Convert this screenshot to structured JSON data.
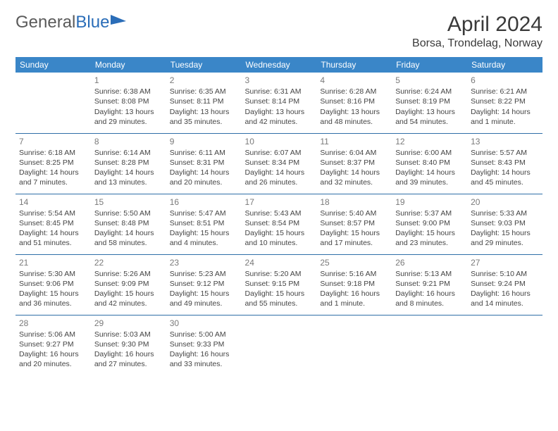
{
  "logo": {
    "text1": "General",
    "text2": "Blue"
  },
  "title": "April 2024",
  "location": "Borsa, Trondelag, Norway",
  "colors": {
    "header_bg": "#3a86c8",
    "header_fg": "#ffffff",
    "rule": "#2f6fa8",
    "daynum": "#7a7a7a",
    "body_text": "#444444",
    "title_text": "#3a3a3a",
    "logo_gray": "#5a5a5a",
    "logo_blue": "#2a6db8"
  },
  "weekdays": [
    "Sunday",
    "Monday",
    "Tuesday",
    "Wednesday",
    "Thursday",
    "Friday",
    "Saturday"
  ],
  "weeks": [
    [
      null,
      {
        "n": "1",
        "sr": "6:38 AM",
        "ss": "8:08 PM",
        "dl": "13 hours and 29 minutes."
      },
      {
        "n": "2",
        "sr": "6:35 AM",
        "ss": "8:11 PM",
        "dl": "13 hours and 35 minutes."
      },
      {
        "n": "3",
        "sr": "6:31 AM",
        "ss": "8:14 PM",
        "dl": "13 hours and 42 minutes."
      },
      {
        "n": "4",
        "sr": "6:28 AM",
        "ss": "8:16 PM",
        "dl": "13 hours and 48 minutes."
      },
      {
        "n": "5",
        "sr": "6:24 AM",
        "ss": "8:19 PM",
        "dl": "13 hours and 54 minutes."
      },
      {
        "n": "6",
        "sr": "6:21 AM",
        "ss": "8:22 PM",
        "dl": "14 hours and 1 minute."
      }
    ],
    [
      {
        "n": "7",
        "sr": "6:18 AM",
        "ss": "8:25 PM",
        "dl": "14 hours and 7 minutes."
      },
      {
        "n": "8",
        "sr": "6:14 AM",
        "ss": "8:28 PM",
        "dl": "14 hours and 13 minutes."
      },
      {
        "n": "9",
        "sr": "6:11 AM",
        "ss": "8:31 PM",
        "dl": "14 hours and 20 minutes."
      },
      {
        "n": "10",
        "sr": "6:07 AM",
        "ss": "8:34 PM",
        "dl": "14 hours and 26 minutes."
      },
      {
        "n": "11",
        "sr": "6:04 AM",
        "ss": "8:37 PM",
        "dl": "14 hours and 32 minutes."
      },
      {
        "n": "12",
        "sr": "6:00 AM",
        "ss": "8:40 PM",
        "dl": "14 hours and 39 minutes."
      },
      {
        "n": "13",
        "sr": "5:57 AM",
        "ss": "8:43 PM",
        "dl": "14 hours and 45 minutes."
      }
    ],
    [
      {
        "n": "14",
        "sr": "5:54 AM",
        "ss": "8:45 PM",
        "dl": "14 hours and 51 minutes."
      },
      {
        "n": "15",
        "sr": "5:50 AM",
        "ss": "8:48 PM",
        "dl": "14 hours and 58 minutes."
      },
      {
        "n": "16",
        "sr": "5:47 AM",
        "ss": "8:51 PM",
        "dl": "15 hours and 4 minutes."
      },
      {
        "n": "17",
        "sr": "5:43 AM",
        "ss": "8:54 PM",
        "dl": "15 hours and 10 minutes."
      },
      {
        "n": "18",
        "sr": "5:40 AM",
        "ss": "8:57 PM",
        "dl": "15 hours and 17 minutes."
      },
      {
        "n": "19",
        "sr": "5:37 AM",
        "ss": "9:00 PM",
        "dl": "15 hours and 23 minutes."
      },
      {
        "n": "20",
        "sr": "5:33 AM",
        "ss": "9:03 PM",
        "dl": "15 hours and 29 minutes."
      }
    ],
    [
      {
        "n": "21",
        "sr": "5:30 AM",
        "ss": "9:06 PM",
        "dl": "15 hours and 36 minutes."
      },
      {
        "n": "22",
        "sr": "5:26 AM",
        "ss": "9:09 PM",
        "dl": "15 hours and 42 minutes."
      },
      {
        "n": "23",
        "sr": "5:23 AM",
        "ss": "9:12 PM",
        "dl": "15 hours and 49 minutes."
      },
      {
        "n": "24",
        "sr": "5:20 AM",
        "ss": "9:15 PM",
        "dl": "15 hours and 55 minutes."
      },
      {
        "n": "25",
        "sr": "5:16 AM",
        "ss": "9:18 PM",
        "dl": "16 hours and 1 minute."
      },
      {
        "n": "26",
        "sr": "5:13 AM",
        "ss": "9:21 PM",
        "dl": "16 hours and 8 minutes."
      },
      {
        "n": "27",
        "sr": "5:10 AM",
        "ss": "9:24 PM",
        "dl": "16 hours and 14 minutes."
      }
    ],
    [
      {
        "n": "28",
        "sr": "5:06 AM",
        "ss": "9:27 PM",
        "dl": "16 hours and 20 minutes."
      },
      {
        "n": "29",
        "sr": "5:03 AM",
        "ss": "9:30 PM",
        "dl": "16 hours and 27 minutes."
      },
      {
        "n": "30",
        "sr": "5:00 AM",
        "ss": "9:33 PM",
        "dl": "16 hours and 33 minutes."
      },
      null,
      null,
      null,
      null
    ]
  ],
  "labels": {
    "sunrise": "Sunrise: ",
    "sunset": "Sunset: ",
    "daylight": "Daylight: "
  }
}
